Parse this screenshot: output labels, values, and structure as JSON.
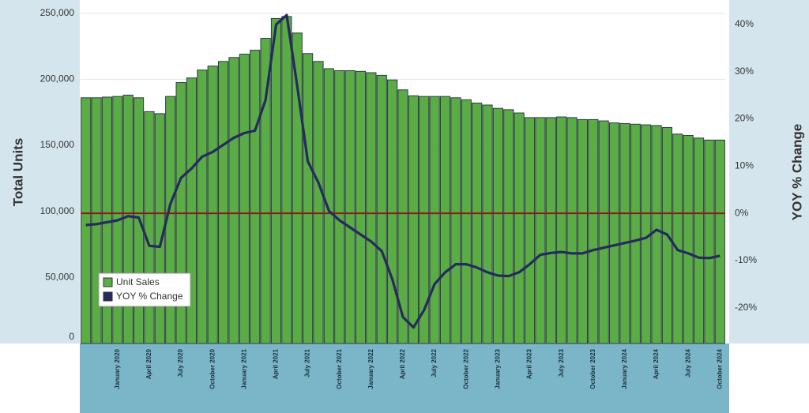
{
  "chart_data": {
    "type": "bar-line",
    "ylabel": "Total Units",
    "y2label": "YOY % Change",
    "categories": [
      null,
      null,
      null,
      "January 2020",
      null,
      null,
      "April 2020",
      null,
      null,
      "July 2020",
      null,
      null,
      "October 2020",
      null,
      null,
      "January 2021",
      null,
      null,
      "April 2021",
      null,
      null,
      "July 2021",
      null,
      null,
      "October 2021",
      null,
      null,
      "January 2022",
      null,
      null,
      "April 2022",
      null,
      null,
      "July 2022",
      null,
      null,
      "October 2022",
      null,
      null,
      "January 2023",
      null,
      null,
      "April 2023",
      null,
      null,
      "July 2023",
      null,
      null,
      "October 2023",
      null,
      null,
      "January 2024",
      null,
      null,
      "April 2024",
      null,
      null,
      "July 2024",
      null,
      null,
      "October 2024"
    ],
    "series": [
      {
        "name": "Unit Sales",
        "color": "#5aac44",
        "values": [
          186000,
          186000,
          186500,
          187000,
          188000,
          186000,
          175500,
          174000,
          187000,
          197500,
          201000,
          207000,
          210000,
          213500,
          216500,
          219000,
          222000,
          231000,
          246000,
          247500,
          235000,
          219500,
          213500,
          208000,
          206500,
          206500,
          206000,
          205000,
          203000,
          199500,
          192000,
          187500,
          187000,
          187000,
          187000,
          186000,
          184500,
          182000,
          180500,
          178000,
          177000,
          174500,
          171000,
          171000,
          171000,
          171500,
          171000,
          169500,
          169500,
          168500,
          167000,
          166500,
          166000,
          165500,
          165000,
          163500,
          158500,
          157500,
          155500,
          154000,
          154000
        ]
      },
      {
        "name": "YOY % Change",
        "color": "#262a5e",
        "axis": "y2",
        "values": [
          -2.5,
          -2.3,
          -1.9,
          -1.5,
          -0.6,
          -0.9,
          -6.9,
          -7.1,
          2.0,
          7.5,
          9.5,
          12.0,
          13.0,
          14.5,
          16.0,
          17.0,
          17.5,
          24.0,
          40.0,
          42.0,
          27.0,
          11.0,
          6.5,
          0.5,
          -1.5,
          -3.0,
          -4.5,
          -6.0,
          -8.0,
          -14.0,
          -22.0,
          -24.2,
          -20.5,
          -15.0,
          -12.5,
          -10.8,
          -10.8,
          -11.5,
          -12.5,
          -13.2,
          -13.3,
          -12.5,
          -10.8,
          -8.8,
          -8.4,
          -8.2,
          -8.5,
          -8.5,
          -7.8,
          -7.3,
          -6.8,
          -6.3,
          -5.8,
          -5.2,
          -3.5,
          -4.5,
          -7.8,
          -8.5,
          -9.4,
          -9.5,
          -9.0
        ]
      }
    ],
    "ylim": [
      0,
      260000
    ],
    "yticks": [
      0,
      {
        "value": 50000,
        "label": "50,000"
      },
      {
        "value": 100000,
        "label": "100,000"
      },
      {
        "value": 150000,
        "label": "150,000"
      },
      {
        "value": 200000,
        "label": "200,000"
      },
      {
        "value": 250000,
        "label": "250,000"
      }
    ],
    "y2lim": [
      -27.6,
      45.2
    ],
    "y2ticks": [
      {
        "value": -20,
        "label": "-20%"
      },
      {
        "value": -10,
        "label": "-10%"
      },
      {
        "value": 0,
        "label": "0%"
      },
      {
        "value": 10,
        "label": "10%"
      },
      {
        "value": 20,
        "label": "20%"
      },
      {
        "value": 30,
        "label": "30%"
      },
      {
        "value": 40,
        "label": "40%"
      }
    ],
    "y2_reference_line": {
      "value": 0,
      "color": "#8b1a1a"
    },
    "grid": true,
    "legend": "lower left"
  }
}
